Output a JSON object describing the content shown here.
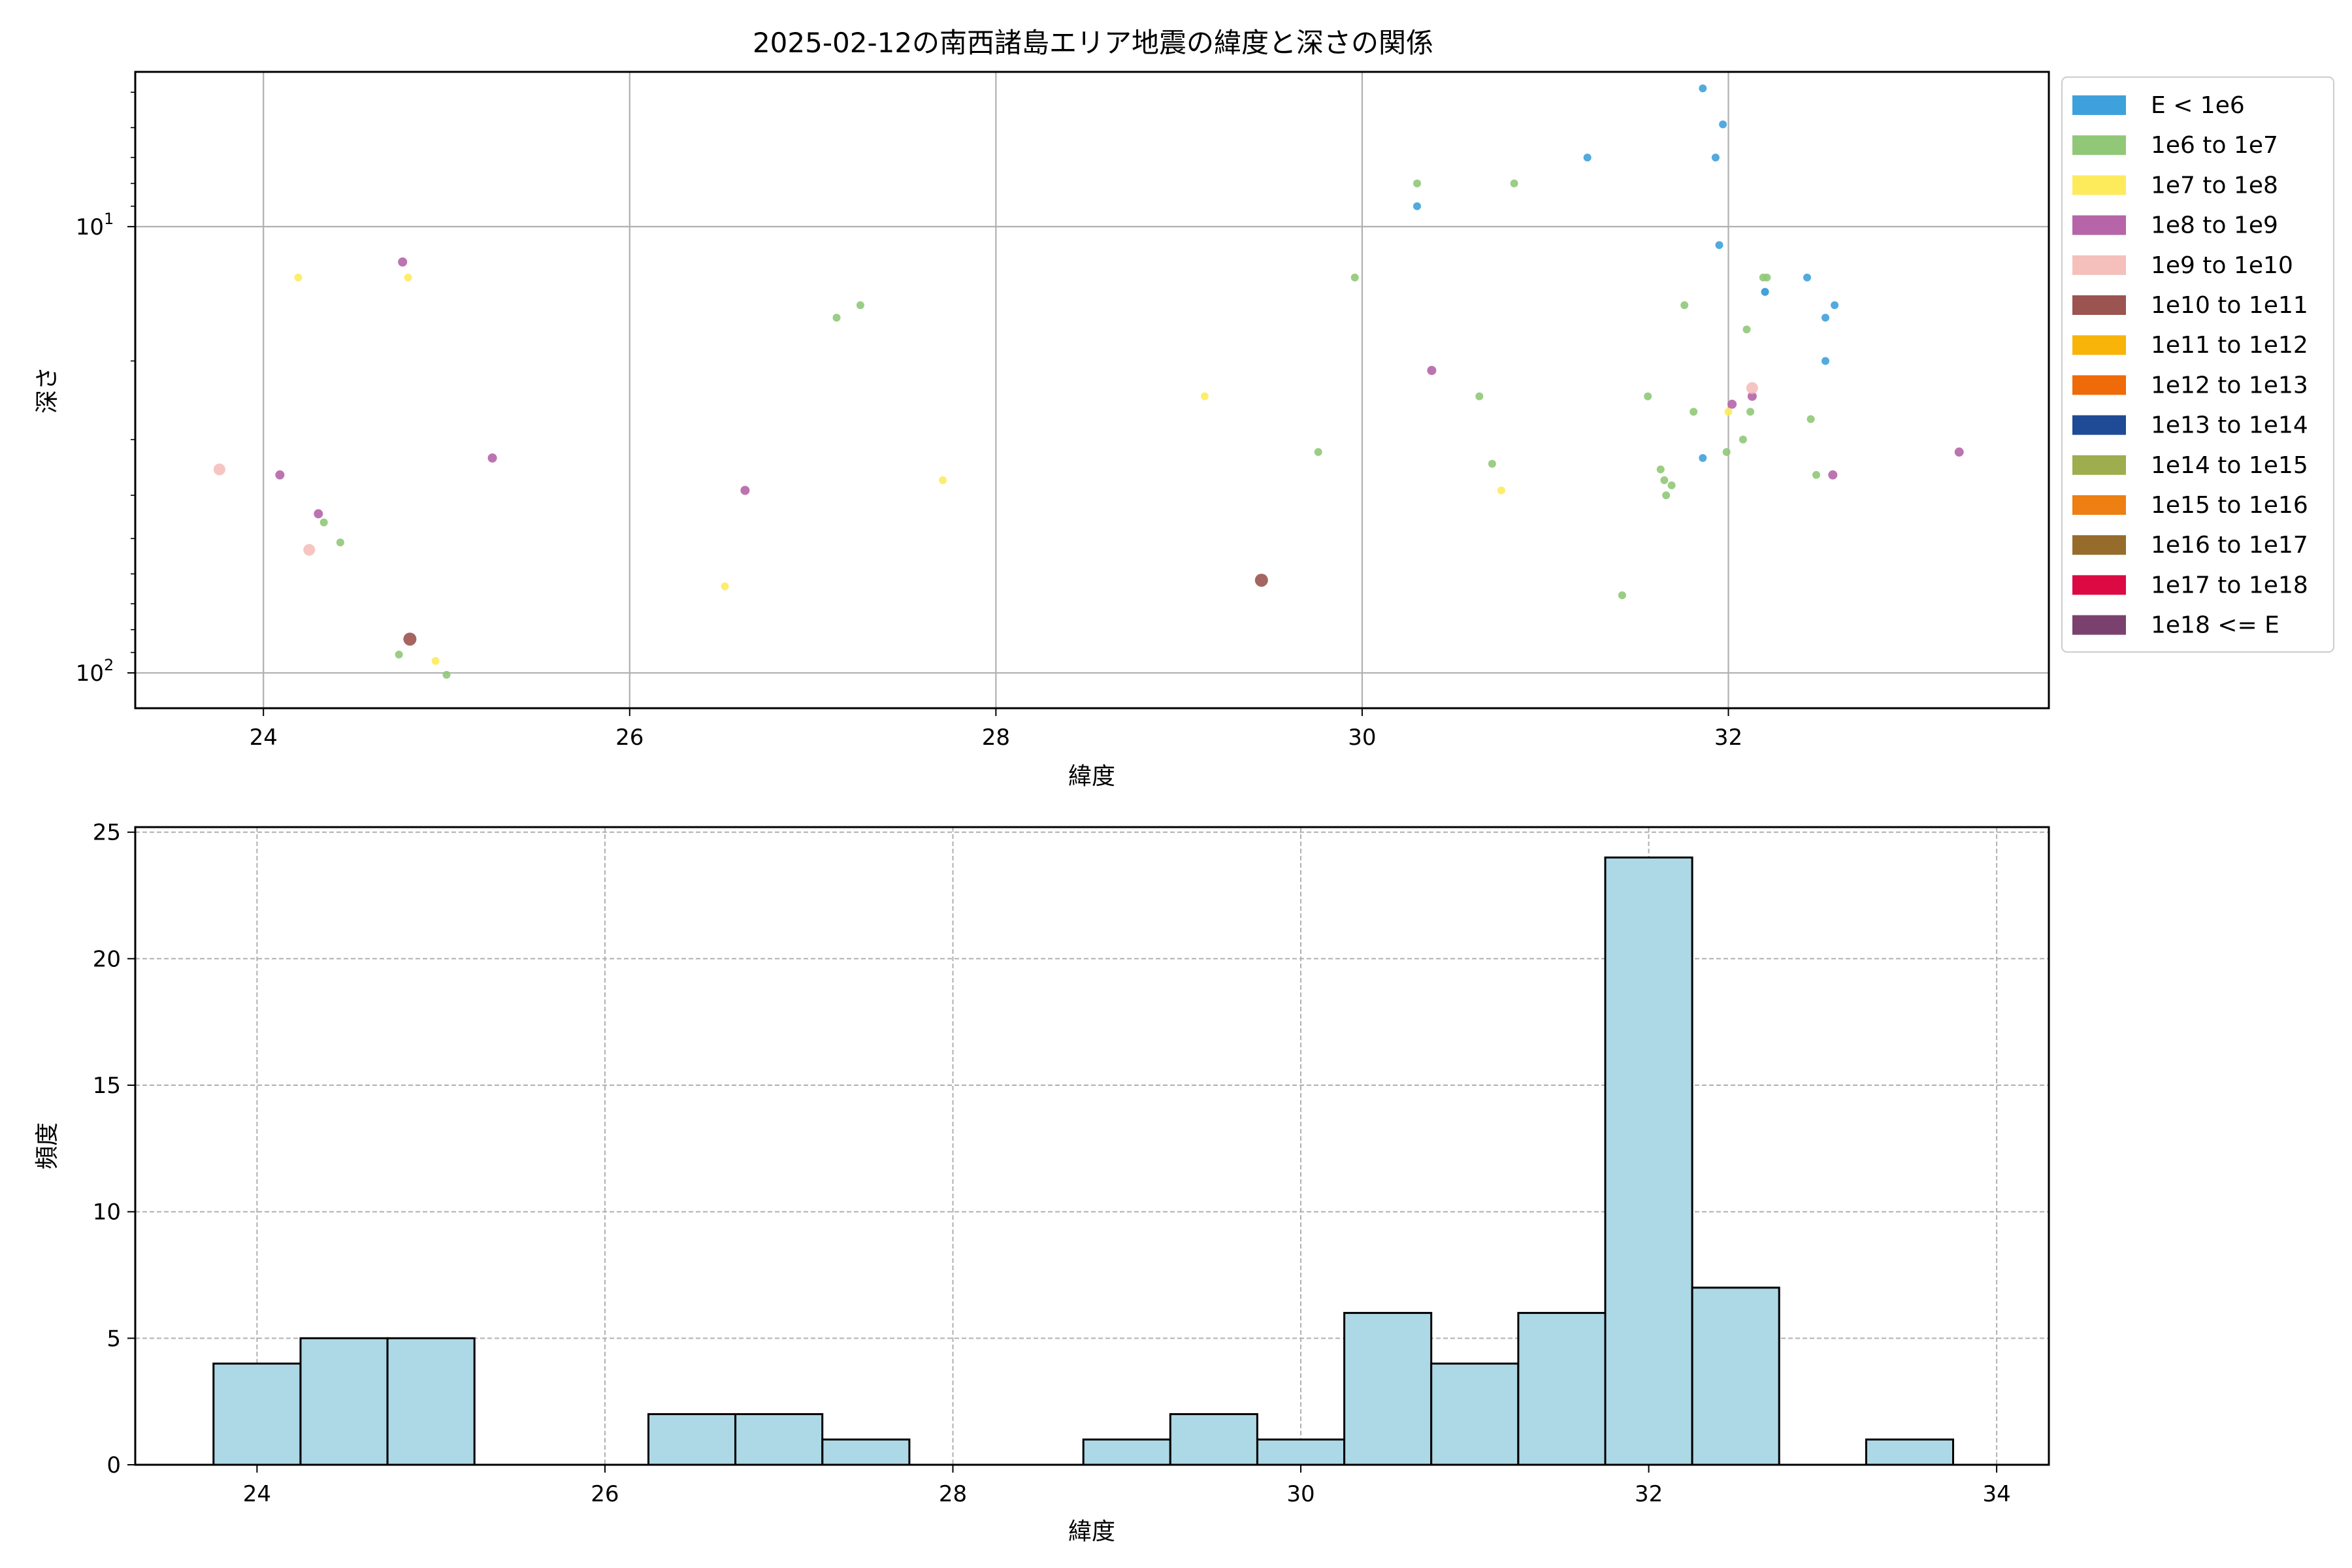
{
  "chart_data": [
    {
      "type": "scatter",
      "title": "2025-02-12の南西諸島エリア地震の緯度と深さの関係",
      "xlabel": "緯度",
      "ylabel": "深さ",
      "xlim": [
        23.3,
        33.75
      ],
      "ylim": [
        120,
        4.5
      ],
      "yscale": "log",
      "y_inverted": true,
      "grid": true,
      "x_ticks": [
        24,
        26,
        28,
        30,
        32
      ],
      "y_ticks": [
        {
          "value": 10,
          "base": "10",
          "exp": "1"
        },
        {
          "value": 100,
          "base": "10",
          "exp": "2"
        }
      ],
      "legend": {
        "placement": "outside-right",
        "entries": [
          {
            "label": "E < 1e6",
            "color": "#3fa1dc"
          },
          {
            "label": "1e6 to 1e7",
            "color": "#90c878"
          },
          {
            "label": "1e7 to 1e8",
            "color": "#fdeb5c"
          },
          {
            "label": "1e8 to 1e9",
            "color": "#b565a8"
          },
          {
            "label": "1e9 to 1e10",
            "color": "#f5bfbb"
          },
          {
            "label": "1e10 to 1e11",
            "color": "#9b5450"
          },
          {
            "label": "1e11 to 1e12",
            "color": "#f9b40a"
          },
          {
            "label": "1e12 to 1e13",
            "color": "#ef6a09"
          },
          {
            "label": "1e13 to 1e14",
            "color": "#1e4a96"
          },
          {
            "label": "1e14 to 1e15",
            "color": "#9ead4e"
          },
          {
            "label": "1e15 to 1e16",
            "color": "#ee7f12"
          },
          {
            "label": "1e16 to 1e17",
            "color": "#966c2c"
          },
          {
            "label": "1e17 to 1e18",
            "color": "#dc0a42"
          },
          {
            "label": "1e18 <= E",
            "color": "#7a416e"
          }
        ]
      },
      "series": [
        {
          "class": 0,
          "points": [
            [
              31.86,
              4.9
            ],
            [
              31.97,
              5.9
            ],
            [
              31.93,
              7.0
            ],
            [
              30.3,
              9.0
            ],
            [
              31.23,
              7.0
            ],
            [
              31.95,
              11.0
            ],
            [
              32.2,
              14.0
            ],
            [
              32.2,
              14.0
            ],
            [
              32.43,
              13.0
            ],
            [
              32.58,
              15.0
            ],
            [
              32.53,
              16.0
            ],
            [
              32.53,
              20.0
            ],
            [
              31.86,
              33.0
            ]
          ]
        },
        {
          "class": 1,
          "points": [
            [
              30.3,
              8.0
            ],
            [
              30.83,
              8.0
            ],
            [
              29.96,
              13.0
            ],
            [
              27.13,
              16.0
            ],
            [
              27.26,
              15.0
            ],
            [
              31.76,
              15.0
            ],
            [
              32.1,
              17.0
            ],
            [
              32.19,
              13.0
            ],
            [
              32.21,
              13.0
            ],
            [
              30.64,
              24.0
            ],
            [
              31.56,
              24.0
            ],
            [
              31.81,
              26.0
            ],
            [
              32.12,
              26.0
            ],
            [
              32.45,
              27.0
            ],
            [
              32.08,
              30.0
            ],
            [
              31.99,
              32.0
            ],
            [
              29.76,
              32.0
            ],
            [
              30.71,
              34.0
            ],
            [
              31.63,
              35.0
            ],
            [
              31.65,
              37.0
            ],
            [
              31.69,
              38.0
            ],
            [
              31.66,
              40.0
            ],
            [
              32.48,
              36.0
            ],
            [
              31.42,
              67.0
            ],
            [
              24.33,
              46.0
            ],
            [
              24.42,
              51.0
            ],
            [
              24.74,
              91.0
            ],
            [
              25.0,
              101.0
            ]
          ]
        },
        {
          "class": 2,
          "points": [
            [
              24.19,
              13.0
            ],
            [
              24.79,
              13.0
            ],
            [
              29.14,
              24.0
            ],
            [
              27.71,
              37.0
            ],
            [
              30.76,
              39.0
            ],
            [
              32.0,
              26.0
            ],
            [
              26.52,
              64.0
            ],
            [
              24.94,
              94.0
            ]
          ]
        },
        {
          "class": 3,
          "points": [
            [
              24.76,
              12.0
            ],
            [
              30.38,
              21.0
            ],
            [
              32.02,
              25.0
            ],
            [
              32.13,
              24.0
            ],
            [
              24.09,
              36.0
            ],
            [
              25.25,
              33.0
            ],
            [
              26.63,
              39.0
            ],
            [
              24.3,
              44.0
            ],
            [
              32.57,
              36.0
            ],
            [
              33.26,
              32.0
            ]
          ]
        },
        {
          "class": 4,
          "points": [
            [
              23.76,
              35.0
            ],
            [
              24.25,
              53.0
            ],
            [
              32.13,
              23.0
            ]
          ]
        },
        {
          "class": 5,
          "points": [
            [
              24.8,
              84.0
            ],
            [
              29.45,
              62.0
            ]
          ]
        }
      ]
    },
    {
      "type": "histogram",
      "xlabel": "緯度",
      "ylabel": "頻度",
      "xlim": [
        23.3,
        34.3
      ],
      "ylim": [
        0,
        25.2
      ],
      "grid": true,
      "x_ticks": [
        24,
        26,
        28,
        30,
        32,
        34
      ],
      "y_ticks": [
        0,
        5,
        10,
        15,
        20,
        25
      ],
      "bar_color": "#add8e6",
      "bins": [
        {
          "start": 23.75,
          "end": 24.25,
          "count": 4
        },
        {
          "start": 24.25,
          "end": 24.75,
          "count": 5
        },
        {
          "start": 24.75,
          "end": 25.25,
          "count": 5
        },
        {
          "start": 25.25,
          "end": 25.75,
          "count": 0
        },
        {
          "start": 25.75,
          "end": 26.25,
          "count": 0
        },
        {
          "start": 26.25,
          "end": 26.75,
          "count": 2
        },
        {
          "start": 26.75,
          "end": 27.25,
          "count": 2
        },
        {
          "start": 27.25,
          "end": 27.75,
          "count": 1
        },
        {
          "start": 27.75,
          "end": 28.25,
          "count": 0
        },
        {
          "start": 28.25,
          "end": 28.75,
          "count": 0
        },
        {
          "start": 28.75,
          "end": 29.25,
          "count": 1
        },
        {
          "start": 29.25,
          "end": 29.75,
          "count": 2
        },
        {
          "start": 29.75,
          "end": 30.25,
          "count": 1
        },
        {
          "start": 30.25,
          "end": 30.75,
          "count": 6
        },
        {
          "start": 30.75,
          "end": 31.25,
          "count": 4
        },
        {
          "start": 31.25,
          "end": 31.75,
          "count": 6
        },
        {
          "start": 31.75,
          "end": 32.25,
          "count": 24
        },
        {
          "start": 32.25,
          "end": 32.75,
          "count": 7
        },
        {
          "start": 32.75,
          "end": 33.25,
          "count": 0
        },
        {
          "start": 33.25,
          "end": 33.75,
          "count": 1
        }
      ]
    }
  ]
}
